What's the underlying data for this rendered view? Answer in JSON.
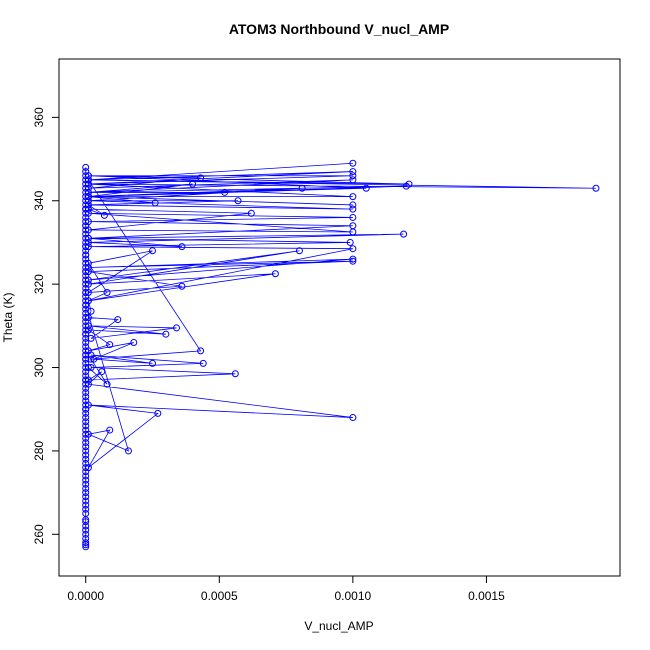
{
  "chart_data": {
    "type": "line",
    "title": "ATOM3 Northbound V_nucl_AMP",
    "xlabel": "V_nucl_AMP",
    "ylabel": "Theta (K)",
    "xlim": [
      -0.0001,
      0.002
    ],
    "ylim": [
      250,
      374
    ],
    "xticks": [
      0.0,
      0.0005,
      0.001,
      0.0015
    ],
    "xtick_labels": [
      "0.0000",
      "0.0005",
      "0.0010",
      "0.0015"
    ],
    "yticks": [
      260,
      280,
      300,
      320,
      340,
      360
    ],
    "ytick_labels": [
      "260",
      "280",
      "300",
      "320",
      "340",
      "360"
    ],
    "grid": false,
    "series": [
      {
        "color": "#0000ff",
        "marker": "open-circle",
        "x": [
          0,
          0,
          0,
          0,
          0,
          0,
          0,
          0,
          0,
          0,
          0,
          0,
          0,
          0,
          0,
          0,
          0,
          0,
          0,
          0,
          0,
          0,
          0,
          0,
          0,
          0,
          0,
          0,
          0,
          0,
          0,
          0,
          0,
          0,
          0,
          0,
          0,
          0,
          0,
          0,
          0,
          0,
          0,
          0,
          0,
          0,
          0,
          0,
          0,
          0,
          0,
          0,
          0,
          0,
          0,
          0,
          0,
          0,
          0,
          0,
          0,
          0,
          0,
          0,
          0,
          0,
          0,
          0,
          0,
          0,
          0,
          0,
          0,
          0,
          0,
          0,
          0,
          0,
          0,
          0,
          0,
          0,
          0,
          0,
          0,
          0,
          0,
          0,
          0,
          0,
          0,
          0,
          0,
          0,
          0,
          0,
          0,
          0,
          0,
          0,
          0,
          0,
          0,
          0,
          0,
          0,
          0.00016,
          1e-05,
          9e-05,
          1e-05,
          0.00027,
          1e-05,
          0.001,
          1e-05,
          6e-05,
          1e-05,
          0.00056,
          2e-05,
          0.00044,
          2e-05,
          0.00025,
          3e-05,
          0.00018,
          1e-05,
          9e-05,
          1e-05,
          0.0003,
          1e-05,
          0.00034,
          2e-05,
          0.00012,
          1e-05,
          2e-05,
          1e-05,
          0.00071,
          1e-05,
          0.0008,
          1e-05,
          0.001,
          1e-05,
          0.001,
          1e-05,
          0.00036,
          1e-05,
          0.00025,
          1e-05,
          8e-05,
          1e-05,
          0.001,
          1e-05,
          0.00099,
          1e-05,
          0.00036,
          1e-05,
          0.00119,
          1e-05,
          0.001,
          1e-05,
          0.001,
          1e-05,
          0.001,
          1e-05,
          0.00062,
          1e-05,
          7e-05,
          1e-05,
          0.001,
          1e-05,
          0.00057,
          1e-05,
          0.00026,
          1e-05,
          0.001,
          1e-05,
          0.0012,
          1e-05,
          0.00052,
          1e-05,
          0.00081,
          1e-05,
          0.001,
          1e-05,
          0.00191,
          1e-05,
          0.00121,
          1e-05,
          0.00105,
          1e-05,
          0.0004,
          1e-05,
          0.001,
          1e-05,
          0.00043,
          1e-05,
          0.001,
          1e-05,
          0.001,
          1e-05,
          0.001,
          1e-05,
          0.00043,
          2e-05,
          8e-05,
          1e-05
        ],
        "y": [
          257,
          257.5,
          258,
          259,
          260,
          261,
          262,
          263,
          263.5,
          265,
          266,
          267,
          268,
          269,
          270,
          271,
          272,
          273,
          274,
          275,
          276,
          277,
          278,
          279,
          280,
          281,
          282,
          283,
          284,
          285,
          286,
          287,
          288,
          289,
          290,
          291,
          292,
          293,
          294,
          295,
          296,
          297,
          298,
          299,
          300,
          301,
          302,
          303,
          304,
          305,
          306,
          307,
          308,
          309,
          310,
          311,
          312,
          313,
          314,
          315,
          316,
          317,
          318,
          319,
          320,
          321,
          322,
          323,
          324,
          325,
          326,
          327,
          328,
          329,
          330,
          331,
          332,
          333,
          334,
          335,
          336,
          337,
          338,
          339,
          340,
          341,
          342,
          343,
          344,
          345,
          346,
          347,
          348,
          297,
          302,
          308,
          318,
          323,
          329,
          334,
          290,
          312,
          327,
          338,
          303,
          315,
          280,
          284,
          285,
          276,
          289,
          291,
          288,
          296,
          299,
          297,
          298.5,
          300,
          301,
          303,
          301,
          302,
          306,
          304,
          305.5,
          309,
          308,
          310,
          309.5,
          307,
          311.5,
          312,
          313.5,
          316,
          322.5,
          320,
          328,
          321,
          326,
          324,
          325.5,
          323,
          319.5,
          318,
          328,
          325,
          318,
          316,
          328.5,
          329,
          330,
          331,
          329,
          330,
          332,
          331,
          334,
          335,
          336,
          337,
          332.5,
          333,
          337,
          338,
          336.5,
          339,
          338,
          340,
          340,
          339,
          339.5,
          341,
          339,
          341,
          343.5,
          342,
          342,
          340,
          343,
          341,
          341,
          344,
          343,
          345,
          344,
          346,
          343,
          341,
          344,
          342,
          345,
          343,
          345.5,
          346,
          346,
          344,
          347,
          345,
          349,
          345,
          304,
          302,
          296,
          300
        ]
      }
    ]
  }
}
